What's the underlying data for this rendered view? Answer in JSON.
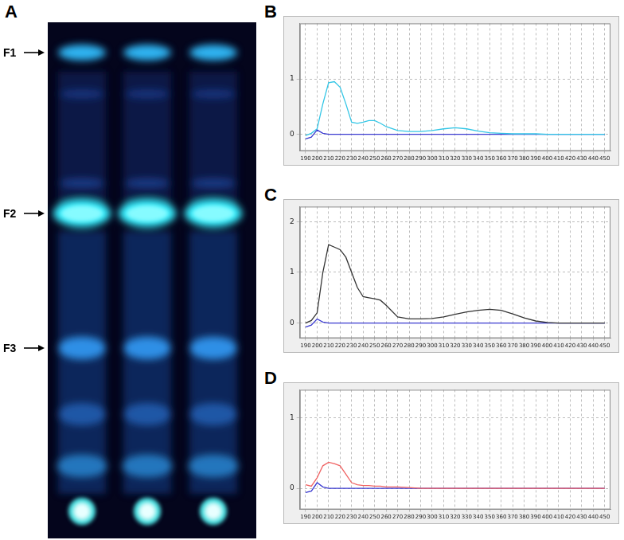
{
  "panel_a": {
    "label": "A",
    "bands": [
      "F1",
      "F2",
      "F3"
    ]
  },
  "chart_data": [
    {
      "type": "line",
      "title": "B",
      "x": [
        190,
        195,
        200,
        205,
        210,
        215,
        220,
        225,
        230,
        235,
        240,
        245,
        250,
        255,
        260,
        270,
        280,
        290,
        300,
        310,
        320,
        330,
        340,
        350,
        360,
        370,
        380,
        390,
        400,
        410,
        420,
        430,
        440,
        450
      ],
      "xlim": [
        185,
        455
      ],
      "xticks": [
        190,
        200,
        210,
        220,
        230,
        240,
        250,
        260,
        270,
        280,
        290,
        300,
        310,
        320,
        330,
        340,
        350,
        360,
        370,
        380,
        390,
        400,
        410,
        420,
        430,
        440,
        450
      ],
      "ylim": [
        -0.3,
        2.0
      ],
      "yticks": [
        0,
        1
      ],
      "grid": true,
      "series": [
        {
          "color": "#33c6e6",
          "values": [
            -0.02,
            0.02,
            0.1,
            0.55,
            0.93,
            0.95,
            0.85,
            0.55,
            0.22,
            0.2,
            0.22,
            0.25,
            0.25,
            0.2,
            0.14,
            0.07,
            0.05,
            0.05,
            0.07,
            0.1,
            0.12,
            0.1,
            0.06,
            0.03,
            0.02,
            0.01,
            0.01,
            0.01,
            0,
            0,
            0,
            0,
            0,
            0
          ]
        },
        {
          "color": "#3a3ad0",
          "values": [
            -0.08,
            -0.05,
            0.08,
            0.02,
            0,
            0,
            0,
            0,
            0,
            0,
            0,
            0,
            0,
            0,
            0,
            0,
            0,
            0,
            0,
            0,
            0,
            0,
            0,
            0,
            0,
            0,
            0,
            0,
            0,
            0,
            0,
            0,
            0,
            0
          ]
        }
      ]
    },
    {
      "type": "line",
      "title": "C",
      "x": [
        190,
        195,
        200,
        205,
        210,
        215,
        220,
        225,
        230,
        235,
        240,
        245,
        250,
        255,
        260,
        270,
        280,
        290,
        300,
        310,
        320,
        330,
        340,
        350,
        360,
        370,
        380,
        390,
        400,
        410,
        420,
        430,
        440,
        450
      ],
      "xlim": [
        185,
        455
      ],
      "xticks": [
        190,
        200,
        210,
        220,
        230,
        240,
        250,
        260,
        270,
        280,
        290,
        300,
        310,
        320,
        330,
        340,
        350,
        360,
        370,
        380,
        390,
        400,
        410,
        420,
        430,
        440,
        450
      ],
      "ylim": [
        -0.3,
        2.3
      ],
      "yticks": [
        0,
        1,
        2
      ],
      "grid": true,
      "series": [
        {
          "color": "#333333",
          "values": [
            0,
            0.05,
            0.2,
            1.0,
            1.55,
            1.5,
            1.45,
            1.3,
            1.0,
            0.7,
            0.52,
            0.5,
            0.48,
            0.45,
            0.35,
            0.12,
            0.08,
            0.08,
            0.09,
            0.12,
            0.17,
            0.22,
            0.25,
            0.27,
            0.25,
            0.18,
            0.1,
            0.04,
            0.01,
            0,
            0,
            0,
            0,
            0
          ]
        },
        {
          "color": "#3a3ad0",
          "values": [
            -0.08,
            -0.04,
            0.08,
            0.02,
            0,
            0,
            0,
            0,
            0,
            0,
            0,
            0,
            0,
            0,
            0,
            0,
            0,
            0,
            0,
            0,
            0,
            0,
            0,
            0,
            0,
            0,
            0,
            0,
            0,
            0,
            0,
            0,
            0,
            0
          ]
        }
      ]
    },
    {
      "type": "line",
      "title": "D",
      "x": [
        190,
        195,
        200,
        205,
        210,
        215,
        220,
        225,
        230,
        235,
        240,
        245,
        250,
        255,
        260,
        270,
        280,
        290,
        300,
        310,
        320,
        330,
        340,
        350,
        360,
        370,
        380,
        390,
        400,
        410,
        420,
        430,
        440,
        450
      ],
      "xlim": [
        185,
        455
      ],
      "xticks": [
        190,
        200,
        210,
        220,
        230,
        240,
        250,
        260,
        270,
        280,
        290,
        300,
        310,
        320,
        330,
        340,
        350,
        360,
        370,
        380,
        390,
        400,
        410,
        420,
        430,
        440,
        450
      ],
      "ylim": [
        -0.3,
        1.4
      ],
      "yticks": [
        0,
        1
      ],
      "grid": true,
      "series": [
        {
          "color": "#f06464",
          "values": [
            0.05,
            0.03,
            0.15,
            0.32,
            0.37,
            0.35,
            0.32,
            0.2,
            0.08,
            0.05,
            0.04,
            0.04,
            0.03,
            0.03,
            0.02,
            0.02,
            0.01,
            0,
            0,
            0,
            0,
            0,
            0,
            0,
            0,
            0,
            0,
            0,
            0,
            0,
            0,
            0,
            0,
            0
          ]
        },
        {
          "color": "#3a3ad0",
          "values": [
            -0.06,
            -0.04,
            0.08,
            0.02,
            0,
            0,
            0,
            0,
            0,
            0,
            0,
            0,
            0,
            0,
            0,
            0,
            0,
            0,
            0,
            0,
            0,
            0,
            0,
            0,
            0,
            0,
            0,
            0,
            0,
            0,
            0,
            0,
            0,
            0
          ]
        }
      ]
    }
  ]
}
